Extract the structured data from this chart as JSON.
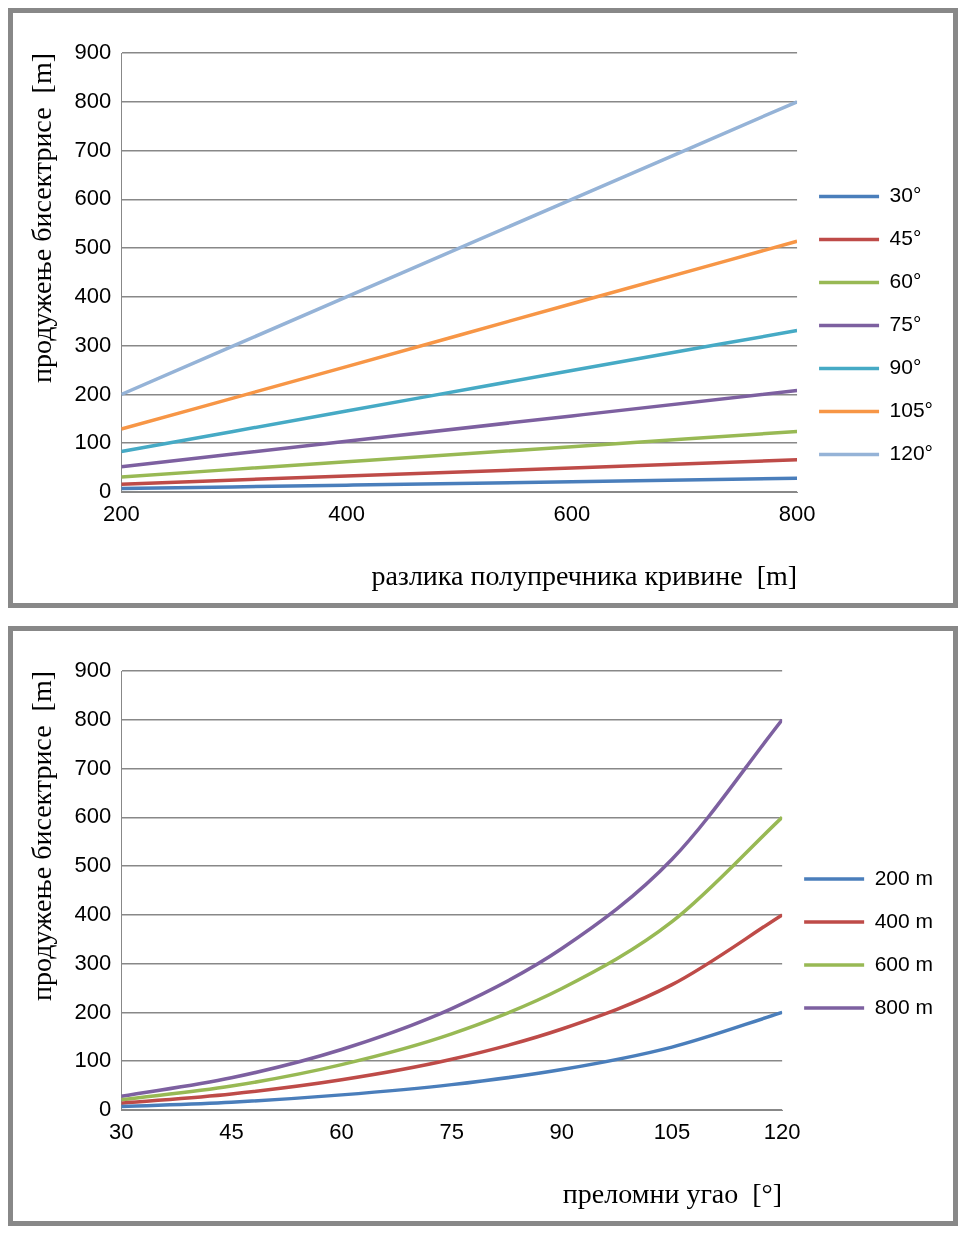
{
  "chart_data": [
    {
      "type": "line",
      "xlabel": "разлика полупречника кривине  [m]",
      "ylabel": "продужење бисектрисе  [m]",
      "x": [
        200,
        400,
        600,
        800
      ],
      "xlim": [
        200,
        800
      ],
      "xticks": [
        200,
        400,
        600,
        800
      ],
      "ylim": [
        0,
        900
      ],
      "yticks": [
        0,
        100,
        200,
        300,
        400,
        500,
        600,
        700,
        800,
        900
      ],
      "grid": "y",
      "legend": "right",
      "marker": "none",
      "line_style": "solid",
      "series": [
        {
          "name": "30°",
          "color": "#4a7ebb",
          "values": [
            7,
            14,
            21,
            28
          ]
        },
        {
          "name": "45°",
          "color": "#be4b48",
          "values": [
            16,
            33,
            49,
            66
          ]
        },
        {
          "name": "60°",
          "color": "#98b954",
          "values": [
            31,
            62,
            93,
            124
          ]
        },
        {
          "name": "75°",
          "color": "#7d60a0",
          "values": [
            52,
            104,
            156,
            208
          ]
        },
        {
          "name": "90°",
          "color": "#46aac5",
          "values": [
            83,
            166,
            249,
            331
          ]
        },
        {
          "name": "105°",
          "color": "#f79646",
          "values": [
            129,
            257,
            386,
            514
          ]
        },
        {
          "name": "120°",
          "color": "#95b3d7",
          "values": [
            200,
            400,
            600,
            800
          ]
        }
      ]
    },
    {
      "type": "line",
      "xlabel": "преломни угао  [°]",
      "ylabel": "продужење бисектрисе  [m]",
      "x": [
        30,
        45,
        60,
        75,
        90,
        105,
        120
      ],
      "xlim": [
        30,
        120
      ],
      "xticks": [
        30,
        45,
        60,
        75,
        90,
        105,
        120
      ],
      "ylim": [
        0,
        900
      ],
      "yticks": [
        0,
        100,
        200,
        300,
        400,
        500,
        600,
        700,
        800,
        900
      ],
      "grid": "y",
      "legend": "right",
      "marker": "none",
      "line_style": "solid",
      "series": [
        {
          "name": "200 m",
          "color": "#4a7ebb",
          "values": [
            7,
            16,
            31,
            52,
            83,
            129,
            200
          ]
        },
        {
          "name": "400 m",
          "color": "#be4b48",
          "values": [
            14,
            33,
            62,
            104,
            166,
            257,
            400
          ]
        },
        {
          "name": "600 m",
          "color": "#98b954",
          "values": [
            21,
            49,
            93,
            156,
            249,
            386,
            600
          ]
        },
        {
          "name": "800 m",
          "color": "#7d60a0",
          "values": [
            28,
            66,
            124,
            208,
            331,
            514,
            800
          ]
        }
      ]
    }
  ]
}
